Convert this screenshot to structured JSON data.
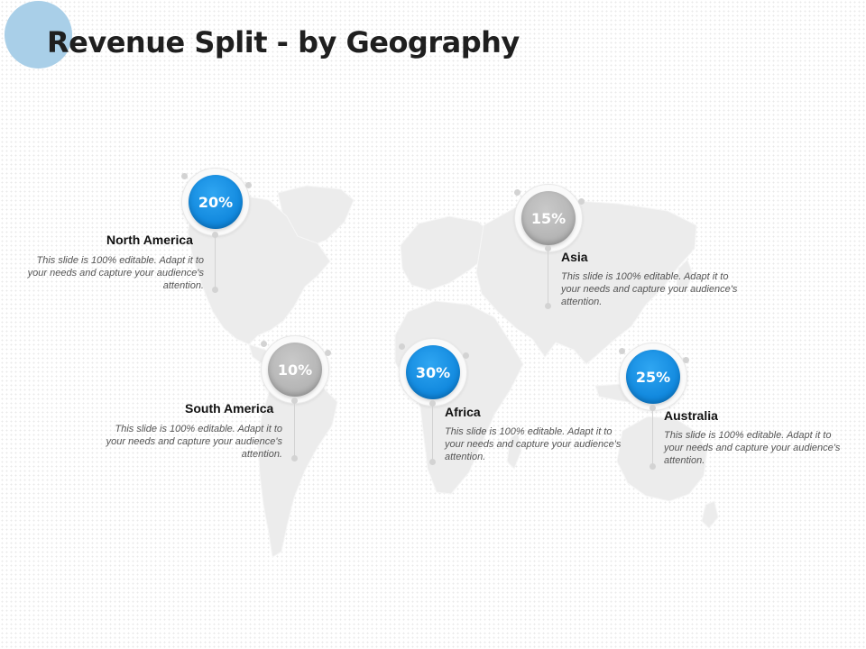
{
  "slide": {
    "title": "Revenue Split - by Geography",
    "accent_color": "#0f86dc",
    "secondary_color": "#b3b3b3",
    "decoration_color": "#a9cfe8"
  },
  "regions": [
    {
      "name": "North America",
      "percent": "20%",
      "color": "blue",
      "description": "This slide is 100% editable. Adapt it to your needs and capture your audience's attention."
    },
    {
      "name": "Asia",
      "percent": "15%",
      "color": "gray",
      "description": "This slide is 100% editable. Adapt it to your needs and capture your audience's attention."
    },
    {
      "name": "South America",
      "percent": "10%",
      "color": "gray",
      "description": "This slide is 100% editable. Adapt it to your needs and capture your audience's attention."
    },
    {
      "name": "Africa",
      "percent": "30%",
      "color": "blue",
      "description": "This slide is 100% editable. Adapt it to your needs and capture your audience's attention."
    },
    {
      "name": "Australia",
      "percent": "25%",
      "color": "blue",
      "description": "This slide is 100% editable. Adapt it to your needs and capture your audience's attention."
    }
  ]
}
